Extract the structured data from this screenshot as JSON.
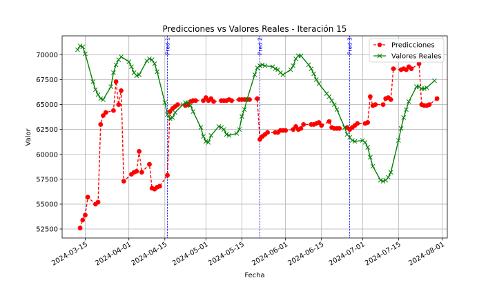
{
  "chart_data": {
    "type": "line",
    "title": "Predicciones vs Valores Reales - Iteración 15",
    "xlabel": "Fecha",
    "ylabel": "Valor",
    "xlim": [
      "2024-03-06",
      "2024-08-03"
    ],
    "ylim": [
      51600,
      71900
    ],
    "x_ticks": [
      "2024-03-15",
      "2024-04-01",
      "2024-04-15",
      "2024-05-01",
      "2024-05-15",
      "2024-06-01",
      "2024-06-15",
      "2024-07-01",
      "2024-07-15",
      "2024-08-01"
    ],
    "y_ticks": [
      52500,
      55000,
      57500,
      60000,
      62500,
      65000,
      67500,
      70000
    ],
    "y_tick_labels": [
      "52500",
      "55000",
      "57500",
      "60000",
      "62500",
      "65000",
      "67500",
      "70000"
    ],
    "grid": true,
    "legend_position": "top-right",
    "series": [
      {
        "name": "Predicciones",
        "color": "#ff0000",
        "style": "dashed",
        "marker": "circle",
        "points": [
          [
            "2024-03-13",
            52600
          ],
          [
            "2024-03-14",
            53400
          ],
          [
            "2024-03-15",
            53900
          ],
          [
            "2024-03-16",
            55700
          ],
          [
            "2024-03-19",
            55000
          ],
          [
            "2024-03-20",
            55200
          ],
          [
            "2024-03-21",
            63000
          ],
          [
            "2024-03-22",
            63900
          ],
          [
            "2024-03-23",
            64200
          ],
          [
            "2024-03-26",
            64400
          ],
          [
            "2024-03-27",
            67300
          ],
          [
            "2024-03-28",
            65000
          ],
          [
            "2024-03-29",
            66400
          ],
          [
            "2024-03-30",
            57300
          ],
          [
            "2024-04-02",
            58000
          ],
          [
            "2024-04-03",
            58200
          ],
          [
            "2024-04-04",
            58300
          ],
          [
            "2024-04-05",
            60300
          ],
          [
            "2024-04-06",
            58200
          ],
          [
            "2024-04-09",
            59000
          ],
          [
            "2024-04-10",
            56600
          ],
          [
            "2024-04-11",
            56500
          ],
          [
            "2024-04-12",
            56700
          ],
          [
            "2024-04-13",
            56800
          ],
          [
            "2024-04-16",
            57900
          ],
          [
            "2024-04-17",
            64300
          ],
          [
            "2024-04-18",
            64600
          ],
          [
            "2024-04-19",
            64800
          ],
          [
            "2024-04-20",
            65000
          ],
          [
            "2024-04-23",
            64900
          ],
          [
            "2024-04-24",
            65000
          ],
          [
            "2024-04-25",
            65300
          ],
          [
            "2024-04-26",
            65400
          ],
          [
            "2024-04-27",
            65400
          ],
          [
            "2024-04-30",
            65400
          ],
          [
            "2024-05-01",
            65700
          ],
          [
            "2024-05-02",
            65400
          ],
          [
            "2024-05-03",
            65600
          ],
          [
            "2024-05-04",
            65300
          ],
          [
            "2024-05-07",
            65400
          ],
          [
            "2024-05-08",
            65400
          ],
          [
            "2024-05-09",
            65400
          ],
          [
            "2024-05-10",
            65500
          ],
          [
            "2024-05-11",
            65400
          ],
          [
            "2024-05-14",
            65500
          ],
          [
            "2024-05-15",
            65500
          ],
          [
            "2024-05-16",
            65500
          ],
          [
            "2024-05-17",
            65500
          ],
          [
            "2024-05-18",
            65500
          ],
          [
            "2024-05-21",
            65600
          ],
          [
            "2024-05-22",
            61500
          ],
          [
            "2024-05-23",
            61800
          ],
          [
            "2024-05-24",
            62000
          ],
          [
            "2024-05-25",
            62200
          ],
          [
            "2024-05-28",
            62200
          ],
          [
            "2024-05-29",
            62200
          ],
          [
            "2024-05-30",
            62400
          ],
          [
            "2024-05-31",
            62400
          ],
          [
            "2024-06-01",
            62400
          ],
          [
            "2024-06-04",
            62500
          ],
          [
            "2024-06-05",
            62800
          ],
          [
            "2024-06-06",
            62500
          ],
          [
            "2024-06-07",
            62600
          ],
          [
            "2024-06-08",
            63000
          ],
          [
            "2024-06-11",
            63000
          ],
          [
            "2024-06-12",
            63000
          ],
          [
            "2024-06-13",
            63100
          ],
          [
            "2024-06-14",
            63200
          ],
          [
            "2024-06-15",
            62900
          ],
          [
            "2024-06-18",
            63300
          ],
          [
            "2024-06-19",
            62700
          ],
          [
            "2024-06-20",
            62600
          ],
          [
            "2024-06-21",
            62600
          ],
          [
            "2024-06-22",
            62600
          ],
          [
            "2024-06-25",
            62700
          ],
          [
            "2024-06-26",
            62500
          ],
          [
            "2024-06-27",
            62700
          ],
          [
            "2024-06-28",
            62900
          ],
          [
            "2024-06-29",
            63100
          ],
          [
            "2024-07-02",
            63100
          ],
          [
            "2024-07-03",
            63200
          ],
          [
            "2024-07-04",
            65800
          ],
          [
            "2024-07-05",
            64900
          ],
          [
            "2024-07-06",
            65000
          ],
          [
            "2024-07-09",
            65000
          ],
          [
            "2024-07-10",
            65600
          ],
          [
            "2024-07-11",
            65700
          ],
          [
            "2024-07-12",
            65500
          ],
          [
            "2024-07-13",
            68600
          ],
          [
            "2024-07-16",
            68500
          ],
          [
            "2024-07-17",
            68600
          ],
          [
            "2024-07-18",
            68500
          ],
          [
            "2024-07-19",
            68800
          ],
          [
            "2024-07-20",
            68600
          ],
          [
            "2024-07-23",
            69100
          ],
          [
            "2024-07-24",
            65000
          ],
          [
            "2024-07-25",
            64900
          ],
          [
            "2024-07-26",
            64900
          ],
          [
            "2024-07-27",
            65000
          ],
          [
            "2024-07-30",
            65600
          ]
        ]
      },
      {
        "name": "Valores Reales",
        "color": "#008000",
        "style": "solid",
        "marker": "x",
        "points": [
          [
            "2024-03-12",
            70500
          ],
          [
            "2024-03-13",
            70900
          ],
          [
            "2024-03-14",
            70800
          ],
          [
            "2024-03-15",
            70100
          ],
          [
            "2024-03-18",
            67300
          ],
          [
            "2024-03-19",
            66500
          ],
          [
            "2024-03-20",
            66000
          ],
          [
            "2024-03-21",
            65600
          ],
          [
            "2024-03-22",
            65500
          ],
          [
            "2024-03-25",
            66800
          ],
          [
            "2024-03-26",
            68200
          ],
          [
            "2024-03-27",
            69000
          ],
          [
            "2024-03-28",
            69500
          ],
          [
            "2024-03-29",
            69800
          ],
          [
            "2024-04-01",
            69300
          ],
          [
            "2024-04-02",
            68800
          ],
          [
            "2024-04-03",
            68200
          ],
          [
            "2024-04-04",
            67900
          ],
          [
            "2024-04-05",
            68000
          ],
          [
            "2024-04-08",
            69400
          ],
          [
            "2024-04-09",
            69600
          ],
          [
            "2024-04-10",
            69500
          ],
          [
            "2024-04-11",
            69100
          ],
          [
            "2024-04-12",
            68300
          ],
          [
            "2024-04-15",
            65200
          ],
          [
            "2024-04-16",
            64000
          ],
          [
            "2024-04-17",
            63600
          ],
          [
            "2024-04-18",
            63700
          ],
          [
            "2024-04-19",
            64200
          ],
          [
            "2024-04-22",
            65000
          ],
          [
            "2024-04-23",
            65200
          ],
          [
            "2024-04-24",
            65200
          ],
          [
            "2024-04-25",
            64900
          ],
          [
            "2024-04-26",
            64300
          ],
          [
            "2024-04-29",
            62700
          ],
          [
            "2024-04-30",
            61800
          ],
          [
            "2024-05-01",
            61300
          ],
          [
            "2024-05-02",
            61200
          ],
          [
            "2024-05-03",
            61900
          ],
          [
            "2024-05-06",
            62800
          ],
          [
            "2024-05-07",
            62700
          ],
          [
            "2024-05-08",
            62500
          ],
          [
            "2024-05-09",
            62000
          ],
          [
            "2024-05-10",
            61900
          ],
          [
            "2024-05-13",
            62100
          ],
          [
            "2024-05-14",
            62500
          ],
          [
            "2024-05-15",
            63800
          ],
          [
            "2024-05-16",
            64500
          ],
          [
            "2024-05-17",
            65500
          ],
          [
            "2024-05-20",
            68000
          ],
          [
            "2024-05-21",
            68700
          ],
          [
            "2024-05-22",
            68900
          ],
          [
            "2024-05-23",
            69000
          ],
          [
            "2024-05-24",
            68900
          ],
          [
            "2024-05-27",
            68800
          ],
          [
            "2024-05-28",
            68600
          ],
          [
            "2024-05-29",
            68500
          ],
          [
            "2024-05-30",
            68200
          ],
          [
            "2024-05-31",
            68000
          ],
          [
            "2024-06-03",
            68500
          ],
          [
            "2024-06-04",
            68900
          ],
          [
            "2024-06-05",
            69600
          ],
          [
            "2024-06-06",
            69900
          ],
          [
            "2024-06-07",
            69900
          ],
          [
            "2024-06-10",
            69000
          ],
          [
            "2024-06-11",
            68600
          ],
          [
            "2024-06-12",
            68100
          ],
          [
            "2024-06-13",
            67500
          ],
          [
            "2024-06-14",
            67100
          ],
          [
            "2024-06-17",
            66100
          ],
          [
            "2024-06-18",
            65800
          ],
          [
            "2024-06-19",
            65400
          ],
          [
            "2024-06-20",
            65000
          ],
          [
            "2024-06-21",
            64500
          ],
          [
            "2024-06-24",
            62700
          ],
          [
            "2024-06-25",
            62000
          ],
          [
            "2024-06-26",
            61700
          ],
          [
            "2024-06-27",
            61400
          ],
          [
            "2024-06-28",
            61300
          ],
          [
            "2024-07-01",
            61400
          ],
          [
            "2024-07-02",
            61200
          ],
          [
            "2024-07-03",
            60700
          ],
          [
            "2024-07-04",
            59700
          ],
          [
            "2024-07-05",
            58800
          ],
          [
            "2024-07-08",
            57400
          ],
          [
            "2024-07-09",
            57300
          ],
          [
            "2024-07-10",
            57400
          ],
          [
            "2024-07-11",
            57700
          ],
          [
            "2024-07-12",
            58200
          ],
          [
            "2024-07-15",
            61400
          ],
          [
            "2024-07-16",
            62600
          ],
          [
            "2024-07-17",
            63700
          ],
          [
            "2024-07-18",
            64500
          ],
          [
            "2024-07-19",
            65300
          ],
          [
            "2024-07-22",
            66800
          ],
          [
            "2024-07-23",
            66800
          ],
          [
            "2024-07-24",
            66600
          ],
          [
            "2024-07-25",
            66600
          ],
          [
            "2024-07-26",
            66700
          ],
          [
            "2024-07-29",
            67400
          ]
        ]
      }
    ],
    "vertical_markers": [
      {
        "label": "Pred 1",
        "x": "2024-04-16",
        "color": "#0000ff"
      },
      {
        "label": "Pred 2",
        "x": "2024-05-22",
        "color": "#0000ff"
      },
      {
        "label": "Pred 3",
        "x": "2024-06-26",
        "color": "#0000ff"
      }
    ]
  }
}
